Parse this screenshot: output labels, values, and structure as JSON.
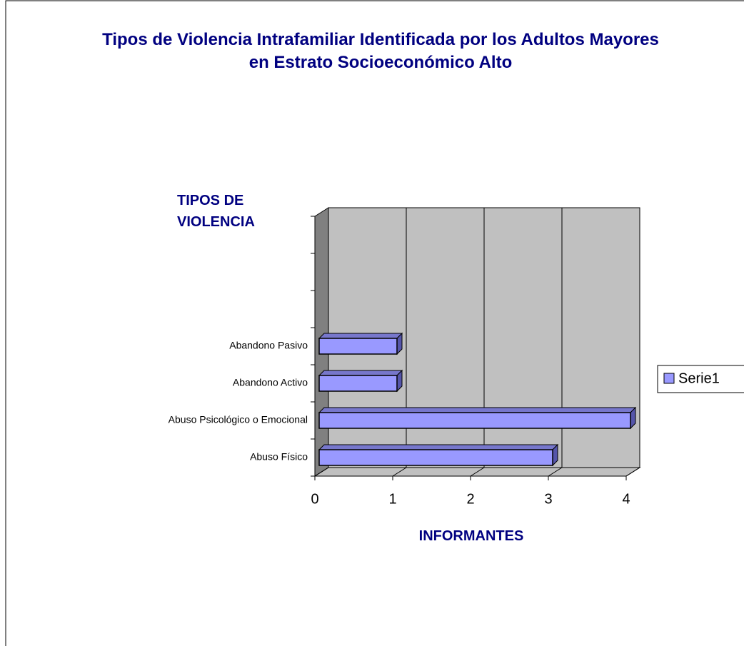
{
  "chart_data": {
    "type": "hbar3d",
    "title": "Tipos de Violencia Intrafamiliar Identificada por los Adultos Mayores en Estrato Socioeconómico Alto",
    "y_label": "TIPOS DE VIOLENCIA",
    "x_label": "INFORMANTES",
    "categories": [
      "Abuso Físico",
      "Abuso Psicológico o Emocional",
      "Abandono Activo",
      "Abandono Pasivo",
      null,
      null,
      null
    ],
    "series": [
      {
        "name": "Serie1",
        "color": "#9999ff",
        "values": [
          3,
          4,
          1,
          1,
          null,
          null,
          null
        ]
      }
    ],
    "xlim": [
      0,
      4
    ],
    "xticks": [
      0,
      1,
      2,
      3,
      4
    ],
    "grid": true,
    "legend": "right"
  }
}
